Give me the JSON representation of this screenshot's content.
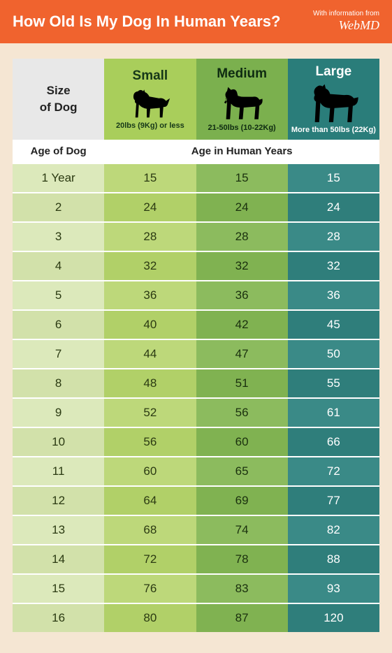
{
  "header": {
    "title": "How Old Is My Dog In Human Years?",
    "credit_prefix": "With information from",
    "credit_source": "WebMD",
    "bg_color": "#f0632e",
    "text_color": "#ffffff"
  },
  "page": {
    "bg_color": "#f5e6d3"
  },
  "table": {
    "size_header": "Size\nof Dog",
    "subhead_age": "Age of Dog",
    "subhead_human": "Age in Human Years",
    "columns": [
      {
        "key": "age",
        "name": "",
        "desc": "",
        "header_bg": "#e8e8e8",
        "cell_bg_odd": "#dce9bb",
        "cell_bg_even": "#d2e1aa",
        "text_color": "#2b3a12"
      },
      {
        "key": "small",
        "name": "Small",
        "desc": "20lbs (9Kg) or less",
        "header_bg": "#a9ce5b",
        "cell_bg_odd": "#bdd87a",
        "cell_bg_even": "#b1d068",
        "text_color": "#2b3a12"
      },
      {
        "key": "medium",
        "name": "Medium",
        "desc": "21-50lbs (10-22Kg)",
        "header_bg": "#7bb04e",
        "cell_bg_odd": "#8cbb5e",
        "cell_bg_even": "#80b251",
        "text_color": "#1a300e"
      },
      {
        "key": "large",
        "name": "Large",
        "desc": "More than 50lbs (22Kg)",
        "header_bg": "#2a7d7a",
        "cell_bg_odd": "#3a8a87",
        "cell_bg_even": "#2f7e7b",
        "text_color": "#ffffff"
      }
    ],
    "first_age_label": "1 Year",
    "rows": [
      {
        "age": "1 Year",
        "small": 15,
        "medium": 15,
        "large": 15
      },
      {
        "age": "2",
        "small": 24,
        "medium": 24,
        "large": 24
      },
      {
        "age": "3",
        "small": 28,
        "medium": 28,
        "large": 28
      },
      {
        "age": "4",
        "small": 32,
        "medium": 32,
        "large": 32
      },
      {
        "age": "5",
        "small": 36,
        "medium": 36,
        "large": 36
      },
      {
        "age": "6",
        "small": 40,
        "medium": 42,
        "large": 45
      },
      {
        "age": "7",
        "small": 44,
        "medium": 47,
        "large": 50
      },
      {
        "age": "8",
        "small": 48,
        "medium": 51,
        "large": 55
      },
      {
        "age": "9",
        "small": 52,
        "medium": 56,
        "large": 61
      },
      {
        "age": "10",
        "small": 56,
        "medium": 60,
        "large": 66
      },
      {
        "age": "11",
        "small": 60,
        "medium": 65,
        "large": 72
      },
      {
        "age": "12",
        "small": 64,
        "medium": 69,
        "large": 77
      },
      {
        "age": "13",
        "small": 68,
        "medium": 74,
        "large": 82
      },
      {
        "age": "14",
        "small": 72,
        "medium": 78,
        "large": 88
      },
      {
        "age": "15",
        "small": 76,
        "medium": 83,
        "large": 93
      },
      {
        "age": "16",
        "small": 80,
        "medium": 87,
        "large": 120
      }
    ],
    "row_border_color": "#ffffff",
    "font_size_header_name": 19,
    "font_size_header_desc": 11,
    "font_size_cell": 17
  },
  "silhouettes": {
    "fill": "#000000"
  }
}
